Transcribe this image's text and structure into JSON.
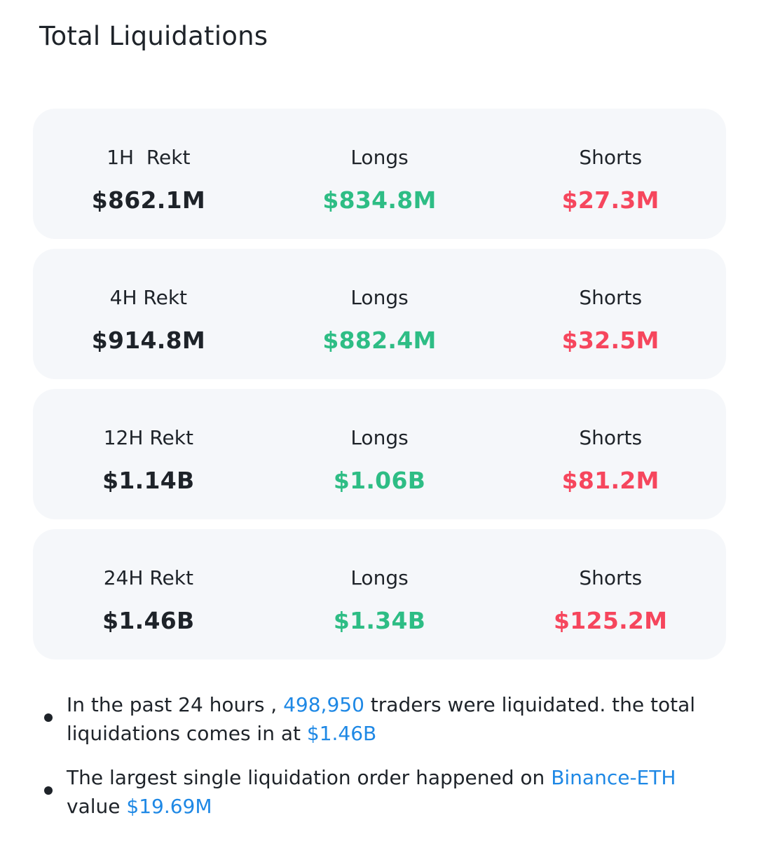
{
  "title": "Total Liquidations",
  "colors": {
    "text": "#1e2329",
    "longs": "#2ebd85",
    "shorts": "#f6465d",
    "link": "#1e88e5",
    "card_bg": "#f5f7fa"
  },
  "rows": [
    {
      "label": "1H  Rekt",
      "total": "$862.1M",
      "longs_label": "Longs",
      "longs": "$834.8M",
      "shorts_label": "Shorts",
      "shorts": "$27.3M"
    },
    {
      "label": "4H Rekt",
      "total": "$914.8M",
      "longs_label": "Longs",
      "longs": "$882.4M",
      "shorts_label": "Shorts",
      "shorts": "$32.5M"
    },
    {
      "label": "12H Rekt",
      "total": "$1.14B",
      "longs_label": "Longs",
      "longs": "$1.06B",
      "shorts_label": "Shorts",
      "shorts": "$81.2M"
    },
    {
      "label": "24H Rekt",
      "total": "$1.46B",
      "longs_label": "Longs",
      "longs": "$1.34B",
      "shorts_label": "Shorts",
      "shorts": "$125.2M"
    }
  ],
  "notes": {
    "traders": {
      "prefix": "In the past 24 hours , ",
      "count": "498,950",
      "middle": " traders were liquidated. the total liquidations comes in at ",
      "total": "$1.46B"
    },
    "largest": {
      "prefix": "The largest single liquidation order happened on ",
      "venue": "Binance-ETH",
      "middle": " value ",
      "value": "$19.69M"
    }
  }
}
